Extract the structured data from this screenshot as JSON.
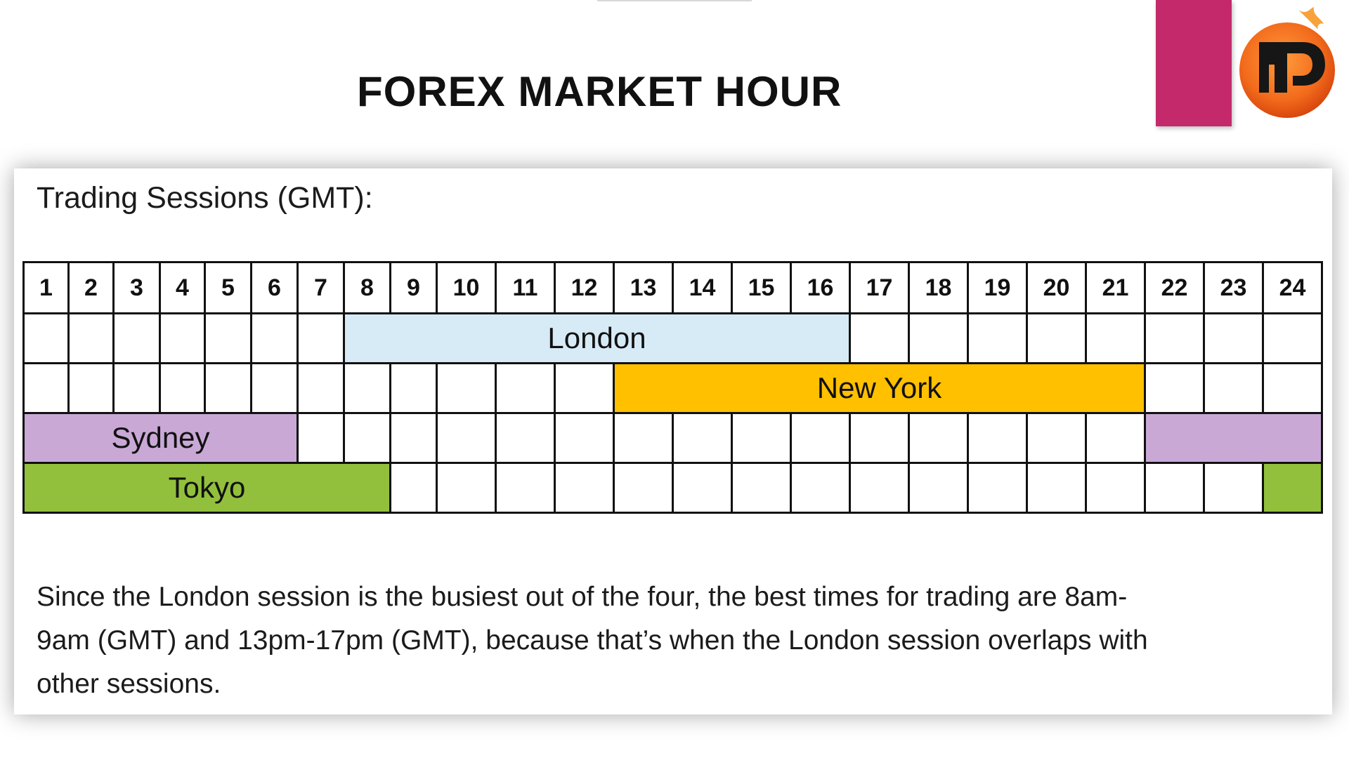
{
  "slide": {
    "title": "FOREX MARKET HOUR"
  },
  "colors": {
    "accent_block": "#c42a6b",
    "logo_orange": "#f26a1b",
    "london": "#d6ebf6",
    "new_york": "#ffc000",
    "sydney": "#c9a8d6",
    "tokyo": "#92c03d"
  },
  "panel": {
    "heading": "Trading Sessions (GMT):",
    "hours": [
      "1",
      "2",
      "3",
      "4",
      "5",
      "6",
      "7",
      "8",
      "9",
      "10",
      "11",
      "12",
      "13",
      "14",
      "15",
      "16",
      "17",
      "18",
      "19",
      "20",
      "21",
      "22",
      "23",
      "24"
    ],
    "sessions": {
      "london": {
        "label": "London",
        "start_hour": 8,
        "end_hour": 16
      },
      "new_york": {
        "label": "New York",
        "start_hour": 13,
        "end_hour": 21
      },
      "sydney": {
        "label": "Sydney",
        "start_hour": 22,
        "end_hour": 6
      },
      "tokyo": {
        "label": "Tokyo",
        "start_hour": 24,
        "end_hour": 8
      }
    },
    "note": "Since the London session is the busiest out of the four, the best times for trading are 8am-9am (GMT) and 13pm-17pm (GMT), because that’s when the London session overlaps with other sessions."
  },
  "icons": {
    "logo": "fp-logo-icon"
  }
}
